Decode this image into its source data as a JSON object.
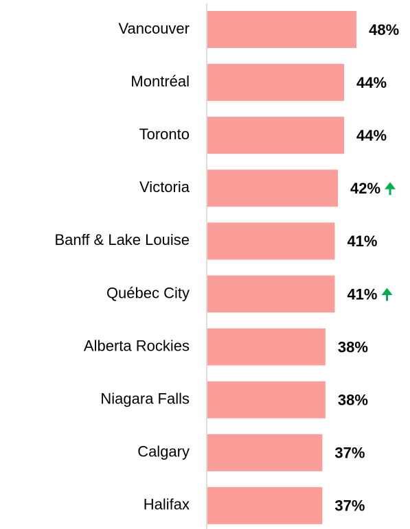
{
  "chart_data": {
    "type": "barh",
    "categories": [
      "Vancouver",
      "Montréal",
      "Toronto",
      "Victoria",
      "Banff & Lake Louise",
      "Québec City",
      "Alberta Rockies",
      "Niagara Falls",
      "Calgary",
      "Halifax"
    ],
    "values": [
      48,
      44,
      44,
      42,
      41,
      41,
      38,
      38,
      37,
      37
    ],
    "value_labels": [
      "48%",
      "44%",
      "44%",
      "42%",
      "41%",
      "41%",
      "38%",
      "38%",
      "37%",
      "37%"
    ],
    "color": "#fb9d99",
    "xlim": [
      0,
      65
    ],
    "arrow_categories": [
      "Victoria",
      "Québec City"
    ],
    "arrow_color": "#00b050"
  }
}
